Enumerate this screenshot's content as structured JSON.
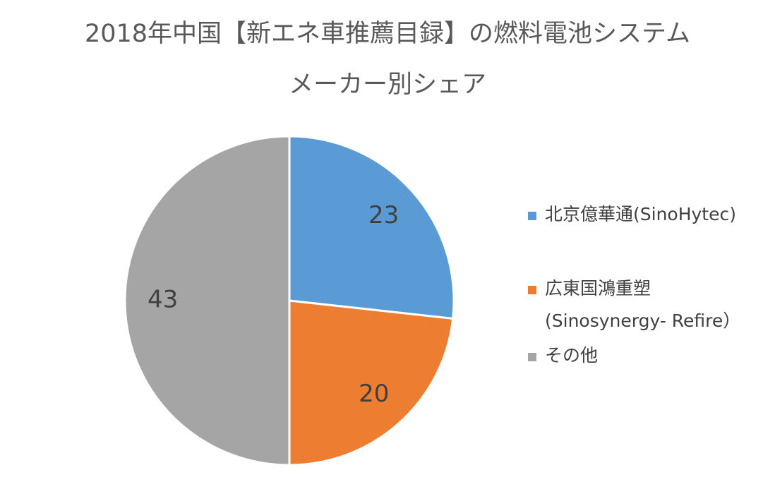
{
  "chart_data": {
    "type": "pie",
    "title_line1": "2018年中国【新エネ車推薦目録】の燃料電池システム",
    "title_line2": "メーカー別シェア",
    "slices": [
      {
        "label": "北京億華通(SinoHytec)",
        "label_line2": "",
        "value": 23,
        "color": "#5B9BD5"
      },
      {
        "label": "広東国鴻重塑",
        "label_line2": "(Sinosynergy- Refire）",
        "value": 20,
        "color": "#ED7D31"
      },
      {
        "label": "その他",
        "label_line2": "",
        "value": 43,
        "color": "#A5A5A5"
      }
    ],
    "legend_position": "right",
    "data_labels": true
  }
}
